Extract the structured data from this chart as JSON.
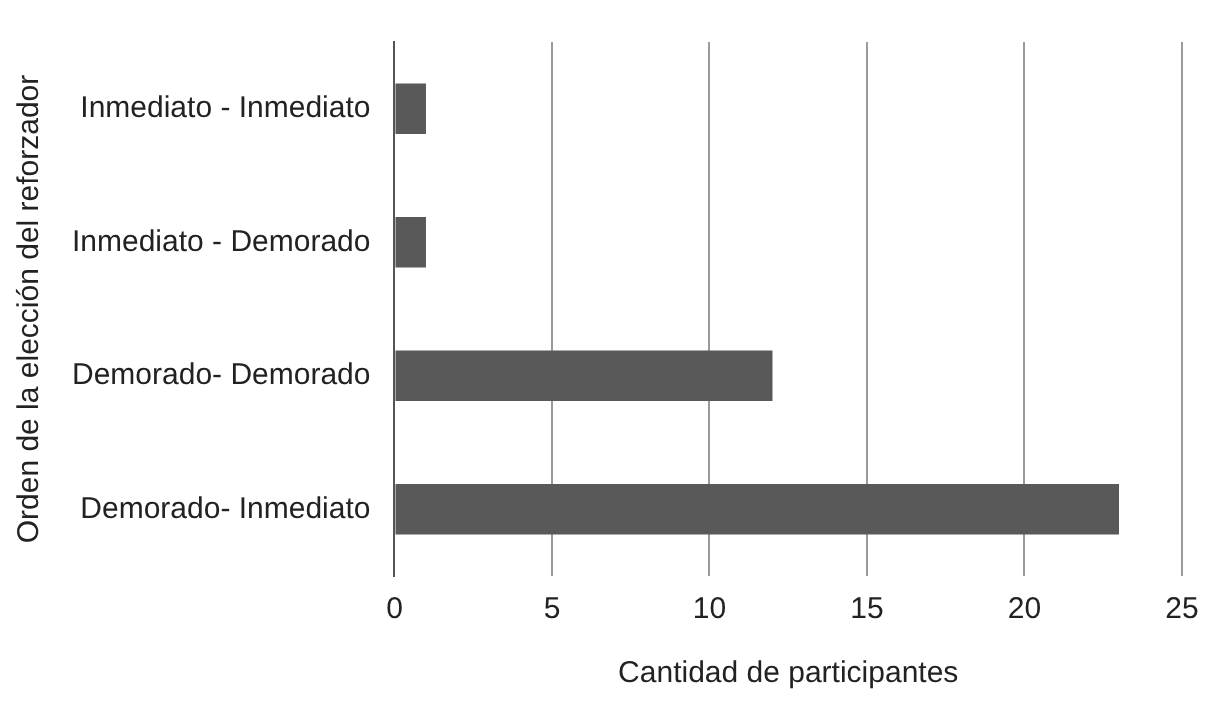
{
  "chart_data": {
    "type": "bar",
    "orientation": "horizontal",
    "categories": [
      "Inmediato - Inmediato",
      "Inmediato - Demorado",
      "Demorado- Demorado",
      "Demorado- Inmediato"
    ],
    "values": [
      1,
      1,
      12,
      23
    ],
    "color": "#595959",
    "xlabel": "Cantidad de participantes",
    "ylabel": "Orden de la elección del reforzador",
    "xlim": [
      0,
      25
    ],
    "xticks": [
      0,
      5,
      10,
      15,
      20,
      25
    ],
    "grid": "x"
  }
}
